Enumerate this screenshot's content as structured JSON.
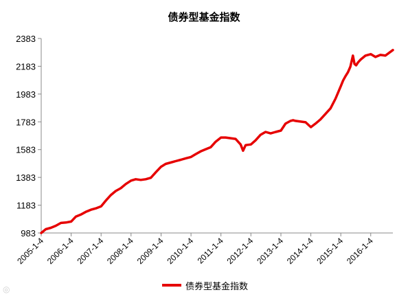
{
  "chart_data": {
    "type": "line",
    "title": "债券型基金指数",
    "xlabel": "",
    "ylabel": "",
    "x_tick_labels": [
      "2005-1-4",
      "2006-1-4",
      "2007-1-4",
      "2008-1-4",
      "2009-1-4",
      "2010-1-4",
      "2011-1-4",
      "2012-1-4",
      "2013-1-4",
      "2014-1-4",
      "2015-1-4",
      "2016-1-4"
    ],
    "y_tick_labels": [
      "983",
      "1183",
      "1383",
      "1583",
      "1783",
      "1983",
      "2183",
      "2383"
    ],
    "ylim": [
      983,
      2383
    ],
    "xlim": [
      "2005-01-04",
      "2016-09-30"
    ],
    "grid": false,
    "legend_position": "bottom",
    "series": [
      {
        "name": "债券型基金指数",
        "color": "#e60000",
        "x": [
          "2005-01-04",
          "2005-03-01",
          "2005-05-01",
          "2005-07-01",
          "2005-09-01",
          "2005-11-01",
          "2006-01-04",
          "2006-03-01",
          "2006-05-01",
          "2006-07-01",
          "2006-09-01",
          "2006-11-01",
          "2007-01-04",
          "2007-03-01",
          "2007-05-01",
          "2007-07-01",
          "2007-09-01",
          "2007-11-01",
          "2008-01-04",
          "2008-03-01",
          "2008-05-01",
          "2008-07-01",
          "2008-09-01",
          "2008-11-01",
          "2009-01-04",
          "2009-03-01",
          "2009-05-01",
          "2009-07-01",
          "2009-09-01",
          "2009-11-01",
          "2010-01-04",
          "2010-03-01",
          "2010-05-01",
          "2010-07-01",
          "2010-09-01",
          "2010-11-01",
          "2011-01-04",
          "2011-03-01",
          "2011-05-01",
          "2011-07-01",
          "2011-09-01",
          "2011-10-01",
          "2011-11-01",
          "2012-01-04",
          "2012-03-01",
          "2012-05-01",
          "2012-07-01",
          "2012-09-01",
          "2012-11-01",
          "2013-01-04",
          "2013-03-01",
          "2013-05-01",
          "2013-06-01",
          "2013-07-01",
          "2013-09-01",
          "2013-11-01",
          "2014-01-04",
          "2014-03-01",
          "2014-05-01",
          "2014-07-01",
          "2014-09-01",
          "2014-11-01",
          "2015-01-04",
          "2015-02-01",
          "2015-03-01",
          "2015-04-01",
          "2015-05-01",
          "2015-06-01",
          "2015-06-20",
          "2015-07-10",
          "2015-08-01",
          "2015-09-01",
          "2015-11-01",
          "2016-01-04",
          "2016-03-01",
          "2016-05-01",
          "2016-07-01",
          "2016-09-30"
        ],
        "values": [
          983,
          1010,
          1020,
          1035,
          1055,
          1058,
          1065,
          1100,
          1115,
          1135,
          1150,
          1160,
          1175,
          1215,
          1255,
          1285,
          1305,
          1335,
          1360,
          1370,
          1365,
          1370,
          1380,
          1420,
          1460,
          1480,
          1490,
          1500,
          1510,
          1520,
          1530,
          1550,
          1570,
          1585,
          1600,
          1640,
          1670,
          1670,
          1665,
          1660,
          1620,
          1575,
          1615,
          1620,
          1650,
          1690,
          1710,
          1700,
          1710,
          1720,
          1770,
          1790,
          1795,
          1790,
          1785,
          1780,
          1745,
          1770,
          1800,
          1840,
          1880,
          1950,
          2040,
          2080,
          2110,
          2140,
          2180,
          2260,
          2200,
          2190,
          2210,
          2230,
          2260,
          2270,
          2250,
          2265,
          2260,
          2300
        ]
      }
    ]
  },
  "legend": {
    "label": "债券型基金指数"
  }
}
